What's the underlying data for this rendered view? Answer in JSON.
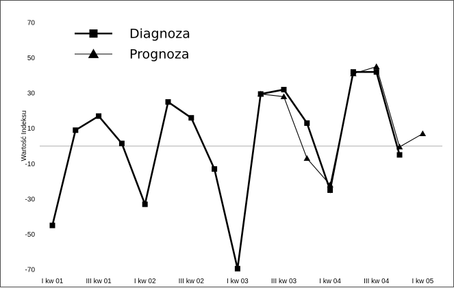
{
  "chart_data": {
    "type": "line",
    "ylabel": "Wartość Indeksu",
    "xlabel": "",
    "ylim": [
      -70,
      70
    ],
    "yticks": [
      70,
      50,
      30,
      10,
      -10,
      -30,
      -50,
      -70
    ],
    "x_tick_labels": [
      "I kw 01",
      "III kw 01",
      "I kw 02",
      "III kw 02",
      "I kw 03",
      "III kw 03",
      "I kw 04",
      "III kw 04",
      "I kw 05"
    ],
    "zero_line": true,
    "legend_position": "top-left",
    "series": [
      {
        "name": "Diagnoza",
        "marker": "square",
        "line": "thick",
        "color": "#000000",
        "values": [
          -45,
          9,
          17,
          1.5,
          -33,
          25,
          16,
          -13,
          -69.5,
          29.5,
          32,
          13,
          -25,
          42,
          42,
          -5
        ]
      },
      {
        "name": "Prognoza",
        "marker": "triangle",
        "line": "thin",
        "color": "#000000",
        "values": [
          null,
          null,
          null,
          null,
          null,
          null,
          null,
          null,
          null,
          29.5,
          28,
          -7,
          -22,
          41,
          45,
          -0.5,
          7
        ]
      }
    ]
  }
}
